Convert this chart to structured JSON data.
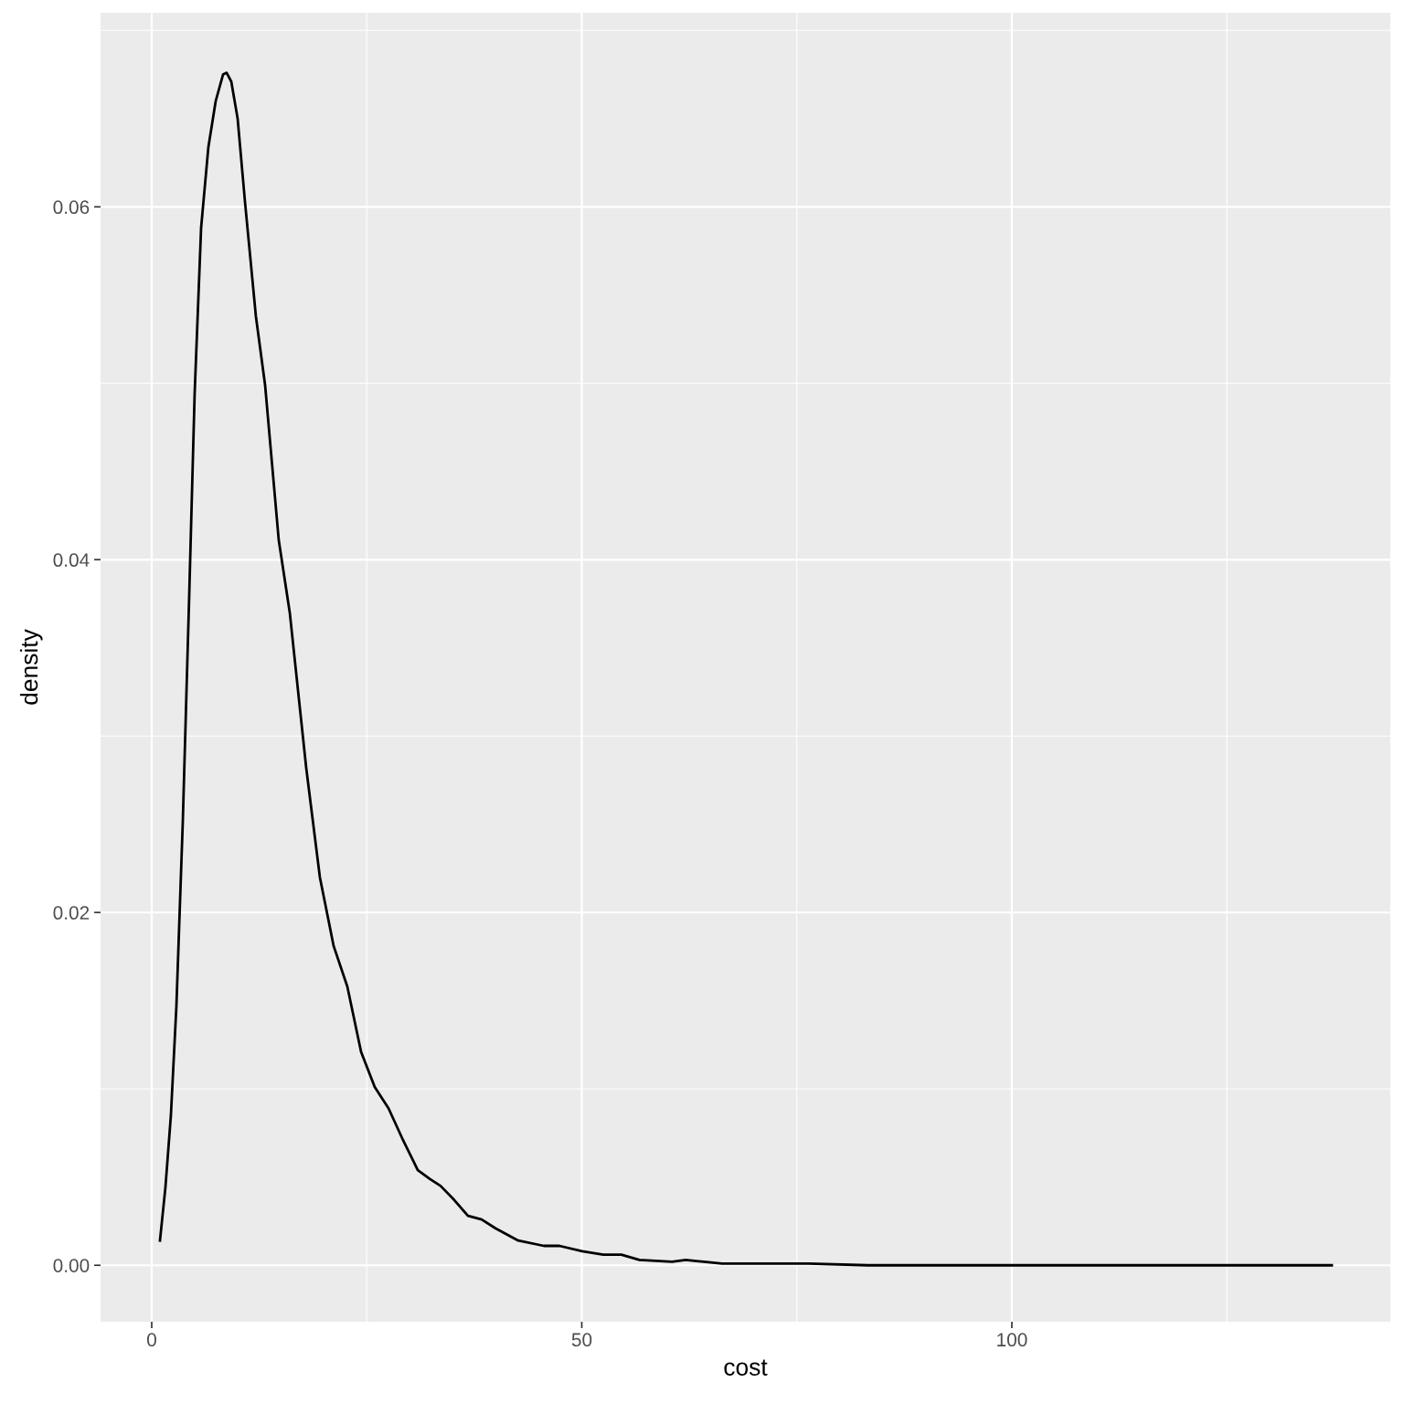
{
  "chart_data": {
    "type": "line",
    "xlabel": "cost",
    "ylabel": "density",
    "xlim": [
      -5.95,
      144.0
    ],
    "ylim": [
      -0.0032,
      0.071
    ],
    "xticks": [
      0,
      50,
      100
    ],
    "yticks": [
      {
        "value": 0,
        "label": "0.00"
      },
      {
        "value": 0.02,
        "label": "0.02"
      },
      {
        "value": 0.04,
        "label": "0.04"
      },
      {
        "value": 0.06,
        "label": "0.06"
      }
    ],
    "grid": true,
    "marker": "none",
    "line_style": "solid",
    "series": [
      {
        "color": "#000000",
        "x": [
          0.96,
          1.59,
          2.23,
          2.87,
          3.61,
          4.36,
          4.99,
          5.74,
          6.59,
          7.44,
          8.29,
          8.71,
          9.25,
          9.99,
          10.84,
          12.11,
          13.18,
          14.77,
          16.05,
          17.96,
          19.55,
          21.15,
          22.74,
          24.34,
          25.93,
          27.53,
          29.12,
          30.93,
          32.31,
          33.58,
          35.17,
          36.77,
          38.36,
          39.96,
          42.61,
          45.59,
          47.4,
          50.05,
          52.5,
          54.6,
          56.7,
          60.5,
          62.1,
          64.2,
          66.3,
          74.8,
          76.4,
          83.3,
          99.3,
          137.2
        ],
        "values": [
          0.0014,
          0.0044,
          0.0085,
          0.0147,
          0.0251,
          0.038,
          0.0494,
          0.0588,
          0.0634,
          0.066,
          0.0675,
          0.0676,
          0.0671,
          0.065,
          0.0603,
          0.0538,
          0.0499,
          0.0411,
          0.037,
          0.0282,
          0.022,
          0.0181,
          0.0158,
          0.0121,
          0.0101,
          0.0089,
          0.0072,
          0.0054,
          0.0049,
          0.0045,
          0.0037,
          0.0028,
          0.0026,
          0.0021,
          0.0014,
          0.0011,
          0.0011,
          0.0008,
          0.0006,
          0.0006,
          0.0003,
          0.0002,
          0.0003,
          0.0002,
          0.0001,
          0.0001,
          0.0001,
          0.0,
          0.0,
          0.0
        ]
      }
    ]
  }
}
